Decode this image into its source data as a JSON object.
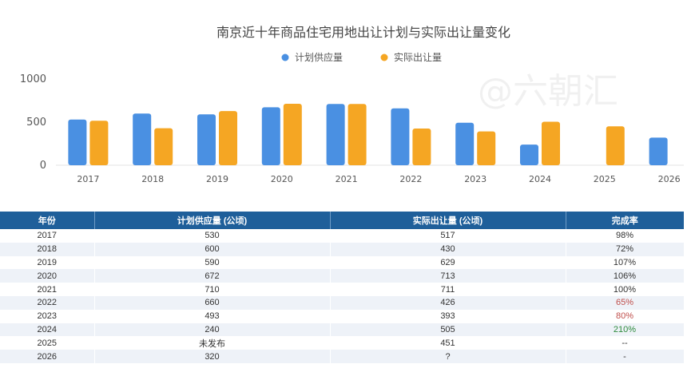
{
  "chart_data": {
    "type": "bar",
    "title": "南京近十年商品住宅用地出让计划与实际出让量变化",
    "categories": [
      "2017",
      "2018",
      "2019",
      "2020",
      "2021",
      "2022",
      "2023",
      "2024",
      "2025",
      "2026"
    ],
    "series": [
      {
        "name": "计划供应量",
        "color": "#4a90e2",
        "values": [
          530,
          600,
          590,
          672,
          710,
          660,
          493,
          240,
          null,
          320
        ]
      },
      {
        "name": "实际出让量",
        "color": "#f5a623",
        "values": [
          517,
          430,
          629,
          713,
          711,
          426,
          393,
          505,
          451,
          null
        ]
      }
    ],
    "yticks": [
      "0",
      "500",
      "1000"
    ],
    "ylim": [
      0,
      1000
    ],
    "legend_position": "top-center",
    "grid": false
  },
  "watermark": "@六朝汇",
  "table": {
    "headers": [
      "年份",
      "计划供应量 (公顷)",
      "实际出让量 (公顷)",
      "完成率"
    ],
    "rows": [
      {
        "year": "2017",
        "plan": "530",
        "actual": "517",
        "rate": "98%",
        "rate_status": "normal"
      },
      {
        "year": "2018",
        "plan": "600",
        "actual": "430",
        "rate": "72%",
        "rate_status": "normal"
      },
      {
        "year": "2019",
        "plan": "590",
        "actual": "629",
        "rate": "107%",
        "rate_status": "normal"
      },
      {
        "year": "2020",
        "plan": "672",
        "actual": "713",
        "rate": "106%",
        "rate_status": "normal"
      },
      {
        "year": "2021",
        "plan": "710",
        "actual": "711",
        "rate": "100%",
        "rate_status": "normal"
      },
      {
        "year": "2022",
        "plan": "660",
        "actual": "426",
        "rate": "65%",
        "rate_status": "low"
      },
      {
        "year": "2023",
        "plan": "493",
        "actual": "393",
        "rate": "80%",
        "rate_status": "low"
      },
      {
        "year": "2024",
        "plan": "240",
        "actual": "505",
        "rate": "210%",
        "rate_status": "high"
      },
      {
        "year": "2025",
        "plan": "未发布",
        "actual": "451",
        "rate": "--",
        "rate_status": "normal"
      },
      {
        "year": "2026",
        "plan": "320",
        "actual": "?",
        "rate": "-",
        "rate_status": "normal"
      }
    ],
    "colors": {
      "header_bg": "#1f5f9a",
      "rate_low": "#c0504d",
      "rate_high": "#2e8b3d"
    }
  }
}
